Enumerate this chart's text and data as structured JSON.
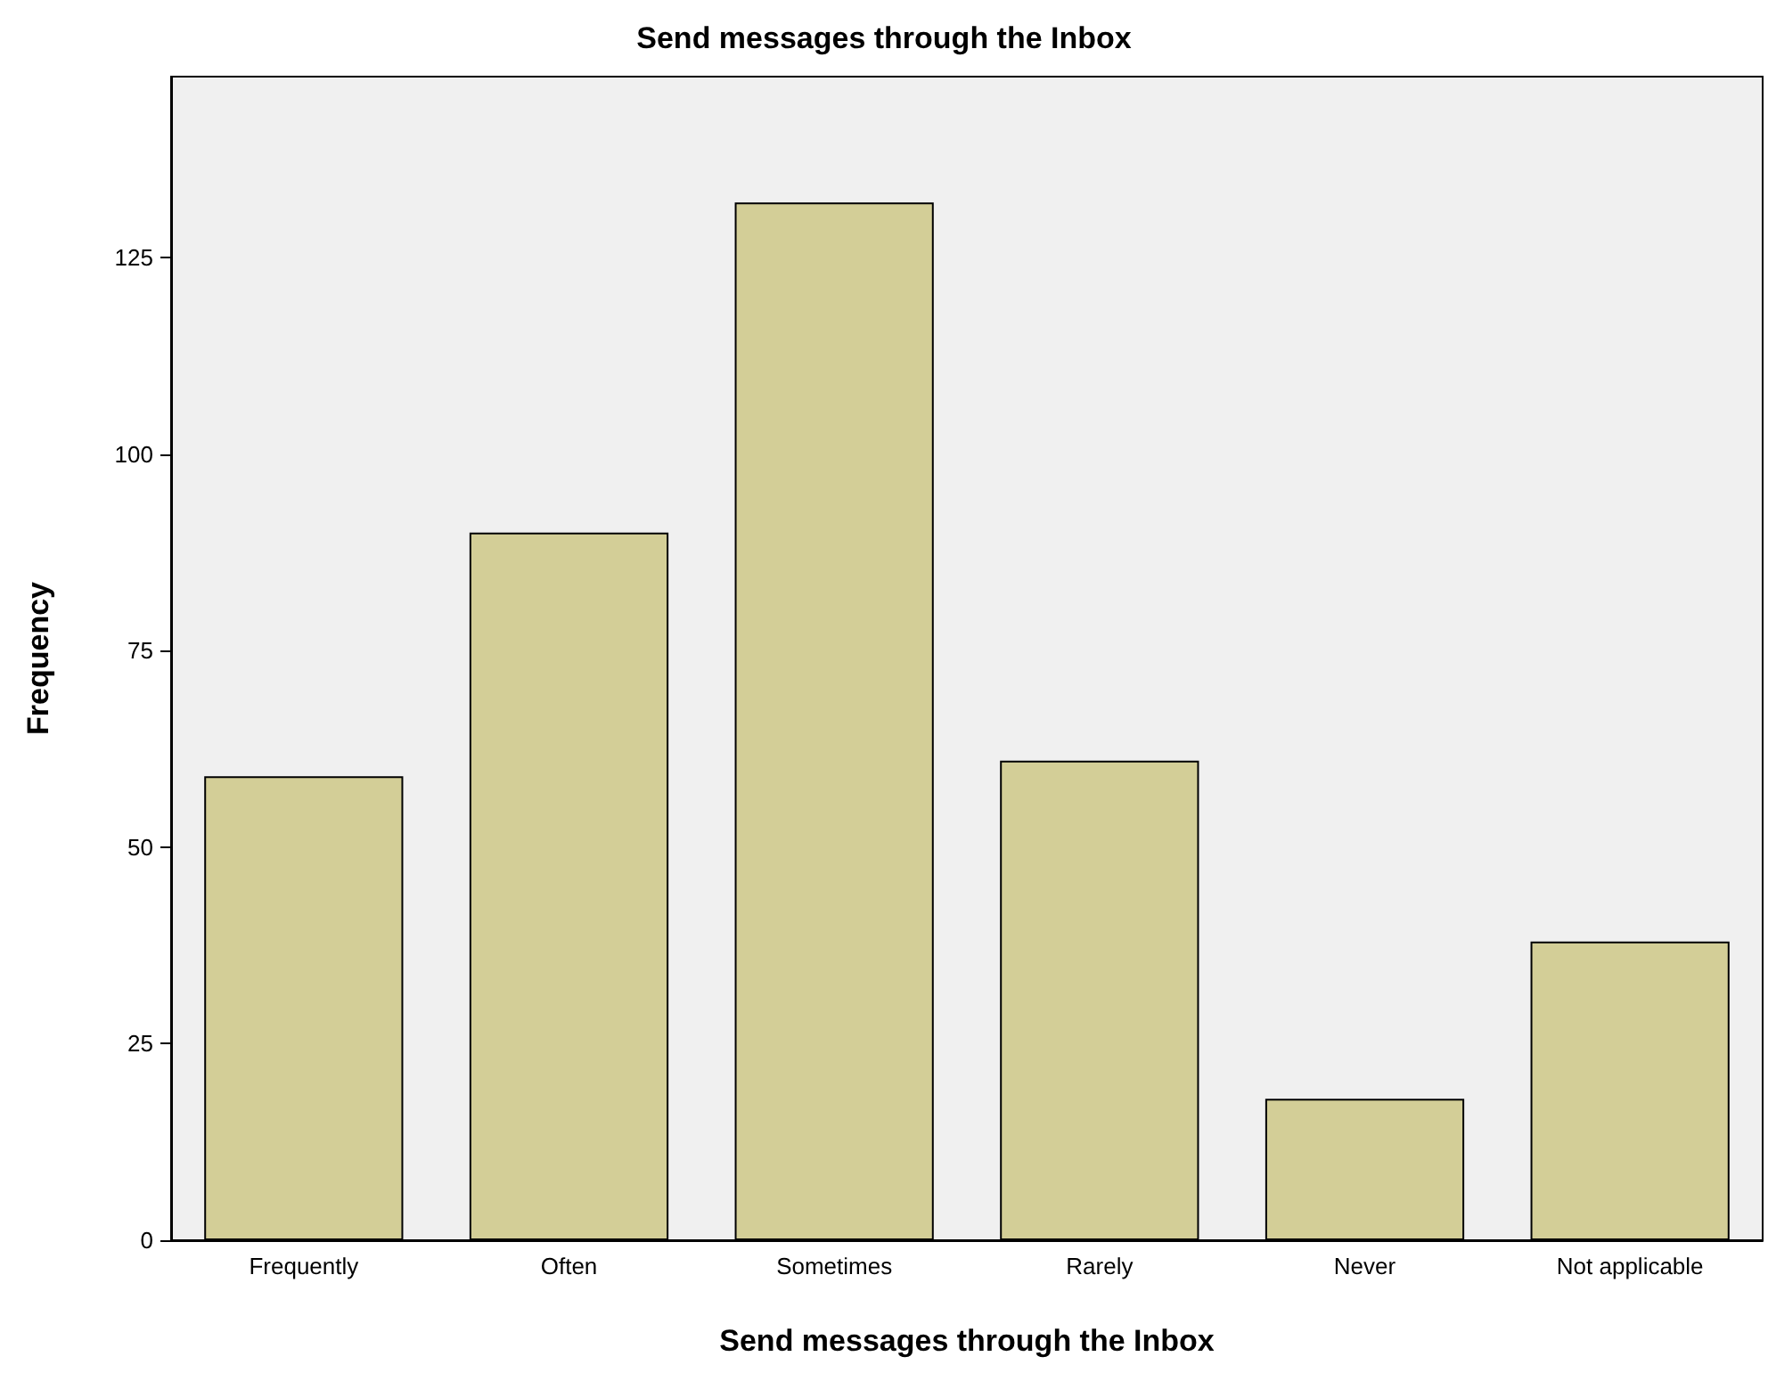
{
  "chart_data": {
    "type": "bar",
    "title": "Send messages through the Inbox",
    "xlabel": "Send messages through the Inbox",
    "ylabel": "Frequency",
    "categories": [
      "Frequently",
      "Often",
      "Sometimes",
      "Rarely",
      "Never",
      "Not applicable"
    ],
    "values": [
      59,
      90,
      132,
      61,
      18,
      38
    ],
    "color": "#d3ce97",
    "ylim": [
      0,
      148
    ],
    "yticks": [
      0,
      25,
      50,
      75,
      100,
      125
    ],
    "grid": false
  }
}
